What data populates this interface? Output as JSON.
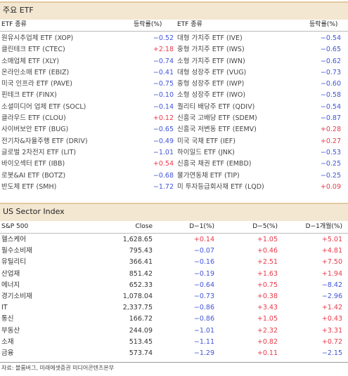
{
  "etf_section": {
    "title": "주요 ETF",
    "left_head": {
      "name": "ETF 종류",
      "change": "등락률(%)"
    },
    "right_head": {
      "name": "ETF 종류",
      "change": "등락률(%)"
    },
    "left_rows": [
      {
        "name": "원유시추업체 ETF (XOP)",
        "change": "−0.52",
        "sign": "neg"
      },
      {
        "name": "클린테크 ETF (CTEC)",
        "change": "+2.18",
        "sign": "pos"
      },
      {
        "name": "소매업체 ETF (XLY)",
        "change": "−0.74",
        "sign": "neg"
      },
      {
        "name": "온라인소매 ETF (EBIZ)",
        "change": "−0.41",
        "sign": "neg"
      },
      {
        "name": "미국 인프라 ETF (PAVE)",
        "change": "−0.75",
        "sign": "neg"
      },
      {
        "name": "핀테크 ETF (FINX)",
        "change": "−0.10",
        "sign": "neg"
      },
      {
        "name": "소셜미디어 업체 ETF (SOCL)",
        "change": "−0.14",
        "sign": "neg"
      },
      {
        "name": "클라우드 ETF (CLOU)",
        "change": "+0.12",
        "sign": "pos"
      },
      {
        "name": "사이버보안 ETF (BUG)",
        "change": "−0.65",
        "sign": "neg"
      },
      {
        "name": "전기차&자율주행 ETF (DRIV)",
        "change": "−0.49",
        "sign": "neg"
      },
      {
        "name": "글로벌 2차전지 ETF (LIT)",
        "change": "−1.01",
        "sign": "neg"
      },
      {
        "name": "바이오섹터 ETF (IBB)",
        "change": "+0.54",
        "sign": "pos"
      },
      {
        "name": "로봇&AI ETF (BOTZ)",
        "change": "−0.68",
        "sign": "neg"
      },
      {
        "name": "반도체 ETF (SMH)",
        "change": "−1.72",
        "sign": "neg"
      }
    ],
    "right_rows": [
      {
        "name": "대형 가치주 ETF (IVE)",
        "change": "−0.54",
        "sign": "neg"
      },
      {
        "name": "중형 가치주 ETF (IWS)",
        "change": "−0.65",
        "sign": "neg"
      },
      {
        "name": "소형 가치주 ETF (IWN)",
        "change": "−0.62",
        "sign": "neg"
      },
      {
        "name": "대형 성장주 ETF (VUG)",
        "change": "−0.73",
        "sign": "neg"
      },
      {
        "name": "중형 성장주 ETF (IWP)",
        "change": "−0.60",
        "sign": "neg"
      },
      {
        "name": "소형 성장주 ETF (IWO)",
        "change": "−0.58",
        "sign": "neg"
      },
      {
        "name": "퀄리티 배당주 ETF (QDIV)",
        "change": "−0.54",
        "sign": "neg"
      },
      {
        "name": "신흥국 고배당 ETF (SDEM)",
        "change": "−0.87",
        "sign": "neg"
      },
      {
        "name": "신흥국 저변동 ETF (EEMV)",
        "change": "+0.28",
        "sign": "pos"
      },
      {
        "name": "미국 국채 ETF (IEF)",
        "change": "+0.27",
        "sign": "pos"
      },
      {
        "name": "하이일드 ETF (JNK)",
        "change": "−0.53",
        "sign": "neg"
      },
      {
        "name": "신흥국 채권 ETF (EMBD)",
        "change": "−0.25",
        "sign": "neg"
      },
      {
        "name": "물가연동채 ETF (TIP)",
        "change": "−0.25",
        "sign": "neg"
      },
      {
        "name": "미 투자등급회사채 ETF (LQD)",
        "change": "+0.09",
        "sign": "pos"
      }
    ]
  },
  "sector_section": {
    "title": "US Sector Index",
    "head": {
      "name": "S&P 500",
      "close": "Close",
      "d1": "D−1(%)",
      "d5": "D−5(%)",
      "m1": "D−1개월(%)"
    },
    "rows": [
      {
        "name": "헬스케어",
        "close": "1,628.65",
        "d1": "+0.14",
        "d1s": "pos",
        "d5": "+1.05",
        "d5s": "pos",
        "m1": "+5.01",
        "m1s": "pos"
      },
      {
        "name": "필수소비재",
        "close": "795.43",
        "d1": "−0.07",
        "d1s": "neg",
        "d5": "+0.46",
        "d5s": "pos",
        "m1": "+4.81",
        "m1s": "pos"
      },
      {
        "name": "유틸리티",
        "close": "366.41",
        "d1": "−0.16",
        "d1s": "neg",
        "d5": "+2.51",
        "d5s": "pos",
        "m1": "+7.50",
        "m1s": "pos"
      },
      {
        "name": "산업재",
        "close": "851.42",
        "d1": "−0.19",
        "d1s": "neg",
        "d5": "+1.63",
        "d5s": "pos",
        "m1": "+1.94",
        "m1s": "pos"
      },
      {
        "name": "에너지",
        "close": "652.33",
        "d1": "−0.64",
        "d1s": "neg",
        "d5": "+0.75",
        "d5s": "pos",
        "m1": "−8.42",
        "m1s": "neg"
      },
      {
        "name": "경기소비재",
        "close": "1,078.04",
        "d1": "−0.73",
        "d1s": "neg",
        "d5": "+0.38",
        "d5s": "pos",
        "m1": "−2.96",
        "m1s": "neg"
      },
      {
        "name": "IT",
        "close": "2,337.75",
        "d1": "−0.86",
        "d1s": "neg",
        "d5": "+3.43",
        "d5s": "pos",
        "m1": "+1.42",
        "m1s": "pos"
      },
      {
        "name": "통신",
        "close": "166.72",
        "d1": "−0.86",
        "d1s": "neg",
        "d5": "+1.05",
        "d5s": "pos",
        "m1": "+0.43",
        "m1s": "pos"
      },
      {
        "name": "부동산",
        "close": "244.09",
        "d1": "−1.01",
        "d1s": "neg",
        "d5": "+2.32",
        "d5s": "pos",
        "m1": "+3.31",
        "m1s": "pos"
      },
      {
        "name": "소재",
        "close": "513.45",
        "d1": "−1.11",
        "d1s": "neg",
        "d5": "+0.82",
        "d5s": "pos",
        "m1": "+0.72",
        "m1s": "pos"
      },
      {
        "name": "금융",
        "close": "573.74",
        "d1": "−1.29",
        "d1s": "neg",
        "d5": "+0.11",
        "d5s": "pos",
        "m1": "−2.15",
        "m1s": "neg"
      }
    ]
  },
  "source": "자료: 블룸버그, 미래에셋증권 미디어콘텐츠본부",
  "colors": {
    "positive": "#e8394a",
    "negative": "#4054d8",
    "header_bg": "#f3e7d2"
  }
}
